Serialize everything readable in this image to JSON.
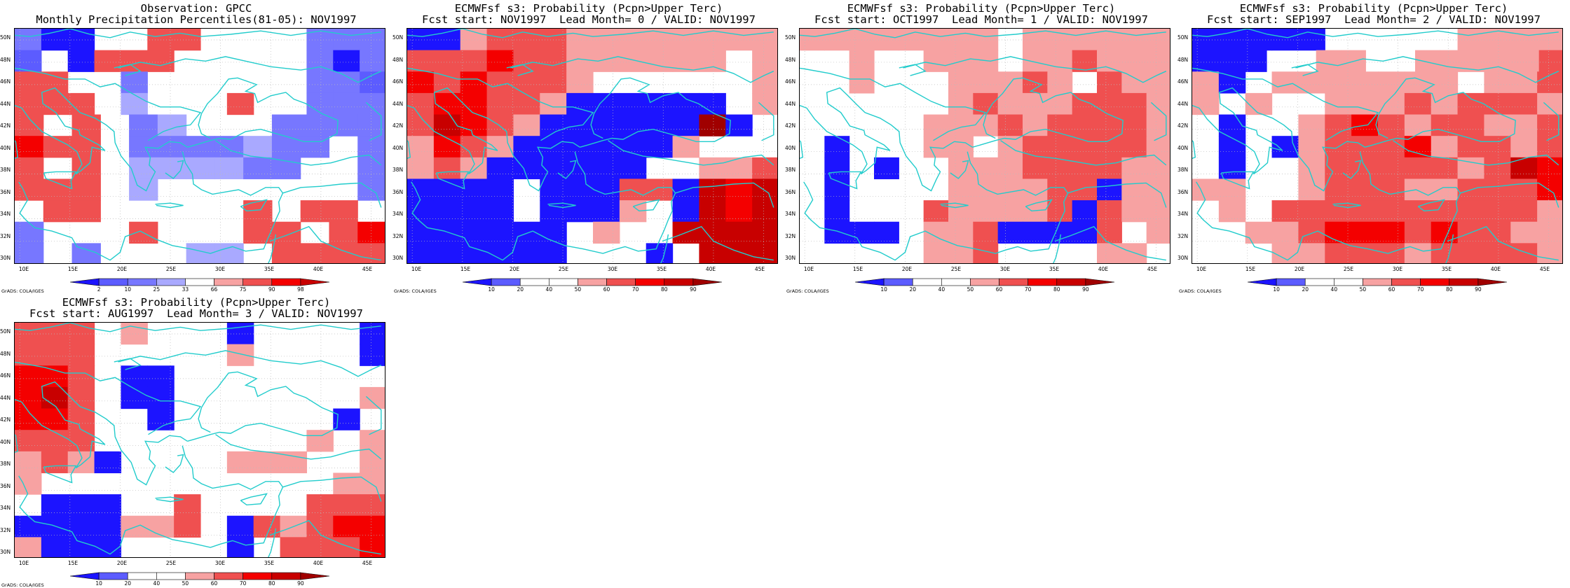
{
  "lat_labels": [
    "50N",
    "48N",
    "46N",
    "44N",
    "42N",
    "40N",
    "38N",
    "36N",
    "34N",
    "32N",
    "30N"
  ],
  "lon_labels": [
    "10E",
    "15E",
    "20E",
    "25E",
    "30E",
    "35E",
    "40E",
    "45E"
  ],
  "credit": "GrADS: COLA/IGES",
  "panels": [
    {
      "title1": "Observation: GPCC",
      "title2": "Monthly Precipitation Percentiles(81-05): NOV1997",
      "scale": "obs",
      "cb_ticks": [
        "2",
        "10",
        "25",
        "33",
        "66",
        "75",
        "90",
        "98"
      ],
      "grid": [
        "cbbwwrrwwwwccc",
        "awbrrrwwwwwcbc",
        "rrwwcwwwwwwcca",
        "rrrwdwwwrwwccc",
        "rwrwcdwwwcccc",
        "srrwccccdccwc",
        "rwrwddddccwwc",
        "rrrwdwwwwwwwc",
        "wrrwwwwwrwrrw",
        "cwwwrwwwrrwrs",
        "cwcwwwddwrrrr"
      ]
    },
    {
      "title1": "ECMWFsf s3: Probability (Pcpn>Upper Terc)",
      "title2": "Fcst start: NOV1997  Lead Month= 0 / VALID: NOV1997",
      "scale": "prob",
      "cb_ticks": [
        "10",
        "20",
        "40",
        "50",
        "60",
        "70",
        "80",
        "90"
      ],
      "grid": [
        "blprrrpppppppp",
        "rrrsrrppppppwp",
        "srsrrrpwwwwwwp",
        "rssrrpbbbbbbwp",
        "rtsrpbbbbbbkbw",
        "psrpbbbbbbpwww",
        "prpbbbbbbwwppr",
        "bbbbwbbbrrbtst",
        "bbbbwbbbpwbtst",
        "bbbbbbwpwwtttt",
        "bbbbbbwwwbwttt"
      ]
    },
    {
      "title1": "ECMWFsf s3: Probability (Pcpn>Upper Terc)",
      "title2": "Fcst start: OCT1997  Lead Month= 1 / VALID: NOV1997",
      "scale": "prob",
      "cb_ticks": [
        "10",
        "20",
        "40",
        "50",
        "60",
        "70",
        "80",
        "90"
      ],
      "grid": [
        "ppppppppwpppppp",
        "wwpwwpppwpprppp",
        "wwpwwwppprpwrpp",
        "wwwwwwprppprrrp",
        "wwwwwppprprrrrp",
        "wbwwwppwprrrrrp",
        "wbwbwwppprrrrpp",
        "wbwwwwpppprrbpp",
        "wbwwwrpppprbrpp",
        "wbbbwpprbbbbrwp",
        "wwwwwpprwwwwppw"
      ]
    },
    {
      "title1": "ECMWFsf s3: Probability (Pcpn>Upper Terc)",
      "title2": "Fcst start: SEP1997  Lead Month= 2 / VALID: NOV1997",
      "scale": "prob",
      "cb_ticks": [
        "10",
        "20",
        "40",
        "50",
        "60",
        "70",
        "80",
        "90"
      ],
      "grid": [
        "bbbbbwwwwwpppp",
        "bbbwwppwwpppppr",
        "pbwpppppppwppr",
        "pwpwwppprprrrp",
        "wbwwprsrprrppr",
        "wbwbprrrsprrpr",
        "wbwwprrrrrprts",
        "ppwwprrrpprrrs",
        "wpwrrrrrrrrrrp",
        "wwpprsssrsrrpp",
        "wwwpprrrprrrrp"
      ]
    },
    {
      "title1": "ECMWFsf s3: Probability (Pcpn>Upper Terc)",
      "title2": "Fcst start: AUG1997  Lead Month= 3 / VALID: NOV1997",
      "scale": "prob",
      "cb_ticks": [
        "10",
        "20",
        "40",
        "50",
        "60",
        "70",
        "80",
        "90"
      ],
      "grid": [
        "rrrwpwwwbwwwwb",
        "rrrwwwwwpwwwwb",
        "ssrwbbwwwwwwww",
        "strwbbwwwwwwwp",
        "ssrwwbwwwwwwbw",
        "rrrwwwwwwwwpwp",
        "prpbwwwwpppwwp",
        "pwwwwwwwwwwwpp",
        "wbbbwwrwwwwrrr",
        "bbbbpprwbrprss",
        "pbbbwwwwbwrrrs"
      ]
    }
  ],
  "colors": {
    "prob_blue": "#1c14ff",
    "prob_white": "#ffffff",
    "prob_pink": "#f7a2a2",
    "prob_red1": "#ef5050",
    "prob_red2": "#f40000",
    "prob_red3": "#c80000",
    "prob_red4": "#a00000",
    "obs_blue1": "#5c5cff",
    "obs_blue2": "#7777ff",
    "obs_blue3": "#a9a9ff",
    "coast": "#22cccc"
  }
}
